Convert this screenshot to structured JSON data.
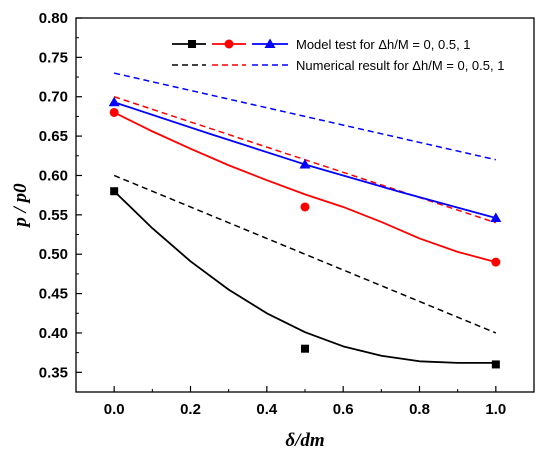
{
  "chart_data": {
    "type": "line",
    "xlabel": "δ/dm",
    "ylabel": "p / p0",
    "xlim": [
      -0.1,
      1.1
    ],
    "ylim": [
      0.325,
      0.8
    ],
    "xticks": [
      0.0,
      0.2,
      0.4,
      0.6,
      0.8,
      1.0
    ],
    "xtick_labels": [
      "0.0",
      "0.2",
      "0.4",
      "0.6",
      "0.8",
      "1.0"
    ],
    "yticks": [
      0.35,
      0.4,
      0.45,
      0.5,
      0.55,
      0.6,
      0.65,
      0.7,
      0.75,
      0.8
    ],
    "ytick_labels": [
      "0.35",
      "0.40",
      "0.45",
      "0.50",
      "0.55",
      "0.60",
      "0.65",
      "0.70",
      "0.75",
      "0.80"
    ],
    "legend": {
      "position": "top-right",
      "model_label": "Model test for Δh/M = 0, 0.5, 1",
      "numerical_label": "Numerical result for Δh/M = 0, 0.5, 1"
    },
    "model_series": [
      {
        "color": "#000000",
        "marker": "square",
        "x": [
          0.0,
          0.5,
          1.0
        ],
        "y": [
          0.58,
          0.38,
          0.36
        ],
        "fit_x": [
          0.0,
          0.1,
          0.2,
          0.3,
          0.4,
          0.5,
          0.6,
          0.7,
          0.8,
          0.9,
          1.0
        ],
        "fit_y": [
          0.58,
          0.533,
          0.491,
          0.455,
          0.425,
          0.401,
          0.383,
          0.371,
          0.364,
          0.362,
          0.362
        ]
      },
      {
        "color": "#ff0000",
        "marker": "circle",
        "x": [
          0.0,
          0.5,
          1.0
        ],
        "y": [
          0.68,
          0.56,
          0.49
        ],
        "fit_x": [
          0.0,
          0.1,
          0.2,
          0.3,
          0.4,
          0.5,
          0.6,
          0.7,
          0.8,
          0.9,
          1.0
        ],
        "fit_y": [
          0.68,
          0.656,
          0.634,
          0.613,
          0.594,
          0.576,
          0.56,
          0.541,
          0.52,
          0.503,
          0.49
        ]
      },
      {
        "color": "#0000ff",
        "marker": "triangle",
        "x": [
          0.0,
          0.5,
          1.0
        ],
        "y": [
          0.693,
          0.614,
          0.546
        ],
        "fit_x": [
          0.0,
          0.25,
          0.5,
          0.75,
          1.0
        ],
        "fit_y": [
          0.693,
          0.653,
          0.614,
          0.579,
          0.546
        ]
      }
    ],
    "numerical_series": [
      {
        "color": "#000000",
        "x": [
          0.0,
          1.0
        ],
        "y": [
          0.6,
          0.4
        ]
      },
      {
        "color": "#ff0000",
        "x": [
          0.0,
          1.0
        ],
        "y": [
          0.7,
          0.54
        ]
      },
      {
        "color": "#0000ff",
        "x": [
          0.0,
          1.0
        ],
        "y": [
          0.73,
          0.62
        ]
      }
    ]
  }
}
